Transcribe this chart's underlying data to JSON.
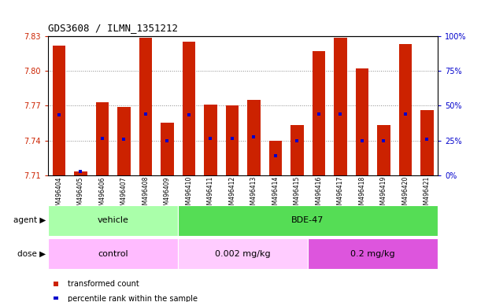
{
  "title": "GDS3608 / ILMN_1351212",
  "samples": [
    "GSM496404",
    "GSM496405",
    "GSM496406",
    "GSM496407",
    "GSM496408",
    "GSM496409",
    "GSM496410",
    "GSM496411",
    "GSM496412",
    "GSM496413",
    "GSM496414",
    "GSM496415",
    "GSM496416",
    "GSM496417",
    "GSM496418",
    "GSM496419",
    "GSM496420",
    "GSM496421"
  ],
  "bar_tops": [
    7.822,
    7.713,
    7.773,
    7.769,
    7.829,
    7.755,
    7.825,
    7.771,
    7.77,
    7.775,
    7.74,
    7.753,
    7.817,
    7.829,
    7.802,
    7.753,
    7.823,
    7.766
  ],
  "bar_bottom": 7.71,
  "percentile_vals": [
    7.762,
    7.713,
    7.742,
    7.741,
    7.763,
    7.74,
    7.762,
    7.742,
    7.742,
    7.743,
    7.727,
    7.74,
    7.763,
    7.763,
    7.74,
    7.74,
    7.763,
    7.741
  ],
  "ymin": 7.71,
  "ymax": 7.83,
  "yticks": [
    7.71,
    7.74,
    7.77,
    7.8,
    7.83
  ],
  "right_yticks_pct": [
    0,
    25,
    50,
    75,
    100
  ],
  "right_ytick_labels": [
    "0%",
    "25%",
    "50%",
    "75%",
    "100%"
  ],
  "bar_color": "#cc2200",
  "percentile_color": "#0000cc",
  "agent_groups": [
    {
      "label": "vehicle",
      "start": 0,
      "end": 6,
      "color": "#aaffaa"
    },
    {
      "label": "BDE-47",
      "start": 6,
      "end": 18,
      "color": "#55dd55"
    }
  ],
  "dose_groups": [
    {
      "label": "control",
      "start": 0,
      "end": 6,
      "color": "#ffbbff"
    },
    {
      "label": "0.002 mg/kg",
      "start": 6,
      "end": 12,
      "color": "#ffccff"
    },
    {
      "label": "0.2 mg/kg",
      "start": 12,
      "end": 18,
      "color": "#dd55dd"
    }
  ],
  "agent_label": "agent",
  "dose_label": "dose",
  "legend_items": [
    {
      "label": "transformed count",
      "color": "#cc2200"
    },
    {
      "label": "percentile rank within the sample",
      "color": "#0000cc"
    }
  ],
  "grid_color": "#888888",
  "plot_bg_color": "#ffffff",
  "fig_bg_color": "#ffffff"
}
